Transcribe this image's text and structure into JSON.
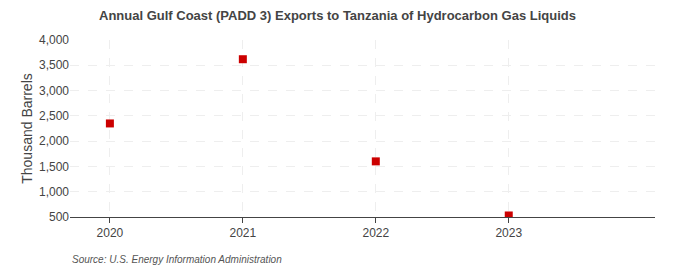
{
  "chart_data": {
    "type": "scatter",
    "title": "Annual Gulf Coast (PADD 3) Exports to Tanzania of Hydrocarbon Gas Liquids",
    "ylabel": "Thousand Barrels",
    "annotations": [
      "Source: U.S. Energy Information Administration"
    ],
    "x": [
      2020,
      2021,
      2022,
      2023
    ],
    "values": [
      2350,
      3620,
      1600,
      530
    ],
    "color": "#cc0000",
    "marker": "square",
    "xlim": [
      2019.7,
      2024.1
    ],
    "xticks": [
      2020,
      2021,
      2022,
      2023
    ],
    "ylim": [
      500,
      4000
    ],
    "yticks": [
      500,
      {
        "value": 1000,
        "label": "1,000"
      },
      {
        "value": 1500,
        "label": "1,500"
      },
      {
        "value": 2000,
        "label": "2,000"
      },
      {
        "value": 2500,
        "label": "2,500"
      },
      {
        "value": 3000,
        "label": "3,000"
      },
      {
        "value": 3500,
        "label": "3,500"
      },
      {
        "value": 4000,
        "label": "4,000"
      }
    ],
    "grid": true
  }
}
